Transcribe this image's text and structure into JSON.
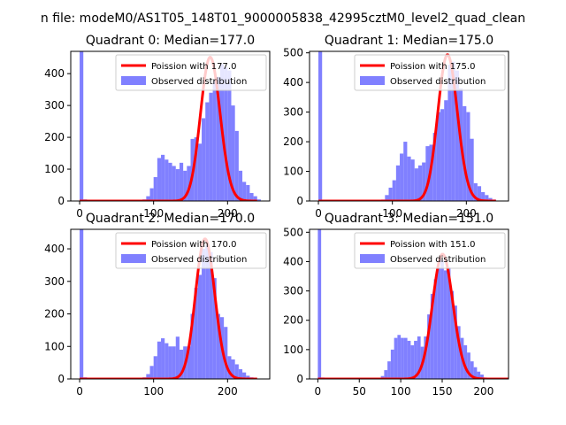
{
  "figure": {
    "suptitle": "n file: modeM0/AS1T05_148T01_9000005838_42995cztM0_level2_quad_clean"
  },
  "chart_data": [
    {
      "type": "bar",
      "title": "Quadrant 0: Median=177.0",
      "xlabel": "",
      "ylabel": "",
      "xlim": [
        -12,
        257
      ],
      "ylim": [
        0,
        470
      ],
      "xticks": [
        0,
        100,
        200
      ],
      "yticks": [
        0,
        100,
        200,
        300,
        400
      ],
      "legend": {
        "placement": "top-right",
        "entries": [
          "Poission with 177.0",
          "Observed distribution"
        ]
      },
      "grid": false,
      "poisson_mean": 177.0,
      "hist": {
        "name": "Observed distribution",
        "color": "#8080ff",
        "bin_width": 5,
        "bins": [
          {
            "x": 0,
            "h": 470
          },
          {
            "x": 5,
            "h": 5
          },
          {
            "x": 85,
            "h": 5
          },
          {
            "x": 90,
            "h": 15
          },
          {
            "x": 95,
            "h": 40
          },
          {
            "x": 100,
            "h": 75
          },
          {
            "x": 105,
            "h": 135
          },
          {
            "x": 110,
            "h": 145
          },
          {
            "x": 115,
            "h": 130
          },
          {
            "x": 120,
            "h": 120
          },
          {
            "x": 125,
            "h": 110
          },
          {
            "x": 130,
            "h": 100
          },
          {
            "x": 135,
            "h": 120
          },
          {
            "x": 140,
            "h": 95
          },
          {
            "x": 145,
            "h": 110
          },
          {
            "x": 150,
            "h": 195
          },
          {
            "x": 155,
            "h": 200
          },
          {
            "x": 160,
            "h": 180
          },
          {
            "x": 165,
            "h": 260
          },
          {
            "x": 170,
            "h": 310
          },
          {
            "x": 175,
            "h": 340
          },
          {
            "x": 180,
            "h": 380
          },
          {
            "x": 185,
            "h": 390
          },
          {
            "x": 190,
            "h": 430
          },
          {
            "x": 195,
            "h": 420
          },
          {
            "x": 200,
            "h": 410
          },
          {
            "x": 205,
            "h": 300
          },
          {
            "x": 210,
            "h": 220
          },
          {
            "x": 215,
            "h": 95
          },
          {
            "x": 220,
            "h": 60
          },
          {
            "x": 225,
            "h": 50
          },
          {
            "x": 230,
            "h": 25
          },
          {
            "x": 235,
            "h": 15
          },
          {
            "x": 240,
            "h": 5
          }
        ]
      }
    },
    {
      "type": "bar",
      "title": "Quadrant 1: Median=175.0",
      "xlabel": "",
      "ylabel": "",
      "xlim": [
        -12,
        257
      ],
      "ylim": [
        0,
        505
      ],
      "xticks": [
        0,
        100,
        200
      ],
      "yticks": [
        0,
        100,
        200,
        300,
        400,
        500
      ],
      "legend": {
        "placement": "top-right",
        "entries": [
          "Poission with 175.0",
          "Observed distribution"
        ]
      },
      "grid": false,
      "poisson_mean": 175.0,
      "hist": {
        "name": "Observed distribution",
        "color": "#8080ff",
        "bin_width": 5,
        "bins": [
          {
            "x": 0,
            "h": 505
          },
          {
            "x": 85,
            "h": 5
          },
          {
            "x": 90,
            "h": 20
          },
          {
            "x": 95,
            "h": 45
          },
          {
            "x": 100,
            "h": 70
          },
          {
            "x": 105,
            "h": 120
          },
          {
            "x": 110,
            "h": 160
          },
          {
            "x": 115,
            "h": 200
          },
          {
            "x": 120,
            "h": 150
          },
          {
            "x": 125,
            "h": 140
          },
          {
            "x": 130,
            "h": 110
          },
          {
            "x": 135,
            "h": 120
          },
          {
            "x": 140,
            "h": 130
          },
          {
            "x": 145,
            "h": 185
          },
          {
            "x": 150,
            "h": 190
          },
          {
            "x": 155,
            "h": 230
          },
          {
            "x": 160,
            "h": 300
          },
          {
            "x": 165,
            "h": 310
          },
          {
            "x": 170,
            "h": 340
          },
          {
            "x": 175,
            "h": 460
          },
          {
            "x": 180,
            "h": 470
          },
          {
            "x": 185,
            "h": 440
          },
          {
            "x": 190,
            "h": 380
          },
          {
            "x": 195,
            "h": 320
          },
          {
            "x": 200,
            "h": 300
          },
          {
            "x": 205,
            "h": 210
          },
          {
            "x": 210,
            "h": 60
          },
          {
            "x": 215,
            "h": 50
          },
          {
            "x": 220,
            "h": 30
          },
          {
            "x": 225,
            "h": 20
          },
          {
            "x": 230,
            "h": 10
          },
          {
            "x": 235,
            "h": 5
          }
        ]
      }
    },
    {
      "type": "bar",
      "title": "Quadrant 2: Median=170.0",
      "xlabel": "",
      "ylabel": "",
      "xlim": [
        -12,
        257
      ],
      "ylim": [
        0,
        460
      ],
      "xticks": [
        0,
        100,
        200
      ],
      "yticks": [
        0,
        100,
        200,
        300,
        400
      ],
      "legend": {
        "placement": "top-right",
        "entries": [
          "Poission with 170.0",
          "Observed distribution"
        ]
      },
      "grid": false,
      "poisson_mean": 170.0,
      "hist": {
        "name": "Observed distribution",
        "color": "#8080ff",
        "bin_width": 5,
        "bins": [
          {
            "x": 0,
            "h": 460
          },
          {
            "x": 5,
            "h": 5
          },
          {
            "x": 85,
            "h": 5
          },
          {
            "x": 90,
            "h": 15
          },
          {
            "x": 95,
            "h": 40
          },
          {
            "x": 100,
            "h": 70
          },
          {
            "x": 105,
            "h": 115
          },
          {
            "x": 110,
            "h": 125
          },
          {
            "x": 115,
            "h": 110
          },
          {
            "x": 120,
            "h": 100
          },
          {
            "x": 125,
            "h": 100
          },
          {
            "x": 130,
            "h": 130
          },
          {
            "x": 135,
            "h": 90
          },
          {
            "x": 140,
            "h": 100
          },
          {
            "x": 145,
            "h": 100
          },
          {
            "x": 150,
            "h": 200
          },
          {
            "x": 155,
            "h": 280
          },
          {
            "x": 160,
            "h": 320
          },
          {
            "x": 165,
            "h": 400
          },
          {
            "x": 170,
            "h": 410
          },
          {
            "x": 175,
            "h": 390
          },
          {
            "x": 180,
            "h": 310
          },
          {
            "x": 185,
            "h": 200
          },
          {
            "x": 190,
            "h": 190
          },
          {
            "x": 195,
            "h": 160
          },
          {
            "x": 200,
            "h": 70
          },
          {
            "x": 205,
            "h": 60
          },
          {
            "x": 210,
            "h": 45
          },
          {
            "x": 215,
            "h": 30
          },
          {
            "x": 220,
            "h": 20
          },
          {
            "x": 225,
            "h": 10
          },
          {
            "x": 230,
            "h": 5
          }
        ]
      }
    },
    {
      "type": "bar",
      "title": "Quadrant 3: Median=151.0",
      "xlabel": "",
      "ylabel": "",
      "xlim": [
        -10,
        230
      ],
      "ylim": [
        0,
        510
      ],
      "xticks": [
        0,
        50,
        100,
        150,
        200
      ],
      "yticks": [
        0,
        100,
        200,
        300,
        400,
        500
      ],
      "legend": {
        "placement": "top-right",
        "entries": [
          "Poission with 151.0",
          "Observed distribution"
        ]
      },
      "grid": false,
      "poisson_mean": 151.0,
      "hist": {
        "name": "Observed distribution",
        "color": "#8080ff",
        "bin_width": 4,
        "bins": [
          {
            "x": 0,
            "h": 510
          },
          {
            "x": 4,
            "h": 5
          },
          {
            "x": 76,
            "h": 10
          },
          {
            "x": 80,
            "h": 30
          },
          {
            "x": 84,
            "h": 60
          },
          {
            "x": 88,
            "h": 100
          },
          {
            "x": 92,
            "h": 140
          },
          {
            "x": 96,
            "h": 150
          },
          {
            "x": 100,
            "h": 140
          },
          {
            "x": 104,
            "h": 140
          },
          {
            "x": 108,
            "h": 130
          },
          {
            "x": 112,
            "h": 115
          },
          {
            "x": 116,
            "h": 130
          },
          {
            "x": 120,
            "h": 145
          },
          {
            "x": 124,
            "h": 110
          },
          {
            "x": 128,
            "h": 145
          },
          {
            "x": 132,
            "h": 220
          },
          {
            "x": 136,
            "h": 290
          },
          {
            "x": 140,
            "h": 340
          },
          {
            "x": 144,
            "h": 380
          },
          {
            "x": 148,
            "h": 405
          },
          {
            "x": 152,
            "h": 370
          },
          {
            "x": 156,
            "h": 380
          },
          {
            "x": 160,
            "h": 300
          },
          {
            "x": 164,
            "h": 250
          },
          {
            "x": 168,
            "h": 180
          },
          {
            "x": 172,
            "h": 140
          },
          {
            "x": 176,
            "h": 115
          },
          {
            "x": 180,
            "h": 90
          },
          {
            "x": 184,
            "h": 60
          },
          {
            "x": 188,
            "h": 40
          },
          {
            "x": 192,
            "h": 25
          },
          {
            "x": 196,
            "h": 15
          },
          {
            "x": 200,
            "h": 5
          }
        ]
      }
    }
  ],
  "colors": {
    "hist": "#8080ff",
    "poisson": "#ff0000",
    "axes": "#000000"
  }
}
